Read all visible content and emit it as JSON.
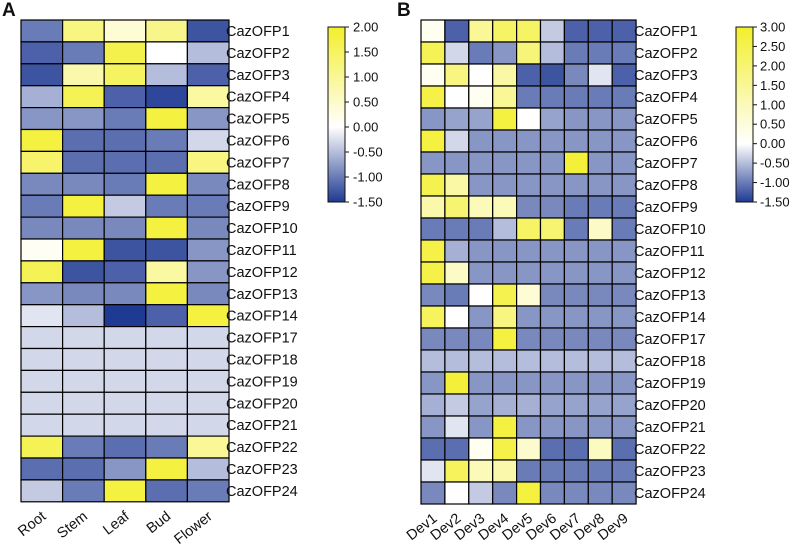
{
  "chart_data": [
    {
      "type": "heatmap",
      "panel_label": "A",
      "rows": [
        "CazOFP1",
        "CazOFP2",
        "CazOFP3",
        "CazOFP4",
        "CazOFP5",
        "CazOFP6",
        "CazOFP7",
        "CazOFP8",
        "CazOFP9",
        "CazOFP10",
        "CazOFP11",
        "CazOFP12",
        "CazOFP13",
        "CazOFP14",
        "CazOFP17",
        "CazOFP18",
        "CazOFP19",
        "CazOFP20",
        "CazOFP21",
        "CazOFP22",
        "CazOFP23",
        "CazOFP24"
      ],
      "columns": [
        "Root",
        "Stem",
        "Leaf",
        "Bud",
        "Flower"
      ],
      "values": [
        [
          -1.0,
          1.2,
          0.4,
          1.1,
          -1.3
        ],
        [
          -1.2,
          -1.0,
          1.7,
          0.0,
          -0.5
        ],
        [
          -1.3,
          0.8,
          1.5,
          -0.5,
          -1.2
        ],
        [
          -0.6,
          1.6,
          -1.2,
          -1.4,
          0.9
        ],
        [
          -0.8,
          -0.8,
          -1.0,
          1.8,
          -0.8
        ],
        [
          1.8,
          -1.1,
          -1.1,
          -1.0,
          -0.3
        ],
        [
          1.4,
          -1.1,
          -1.1,
          -1.1,
          1.2
        ],
        [
          -0.9,
          -0.9,
          -1.0,
          1.8,
          -0.9
        ],
        [
          -1.0,
          1.8,
          -0.4,
          -1.0,
          -1.0
        ],
        [
          -0.9,
          -0.9,
          -0.9,
          1.8,
          -0.9
        ],
        [
          0.1,
          1.8,
          -1.3,
          -1.3,
          -0.8
        ],
        [
          1.6,
          -1.3,
          -1.2,
          0.9,
          -0.8
        ],
        [
          -0.8,
          -0.9,
          -0.9,
          1.8,
          -0.9
        ],
        [
          -0.2,
          -0.5,
          -1.5,
          -1.2,
          1.8
        ],
        [
          -0.3,
          -0.3,
          -0.3,
          -0.3,
          -0.3
        ],
        [
          -0.3,
          -0.3,
          -0.3,
          -0.3,
          -0.3
        ],
        [
          -0.3,
          -0.3,
          -0.3,
          -0.3,
          -0.3
        ],
        [
          -0.3,
          -0.3,
          -0.3,
          -0.3,
          -0.3
        ],
        [
          -0.3,
          -0.3,
          -0.3,
          -0.3,
          -0.3
        ],
        [
          1.6,
          -1.0,
          -1.1,
          -1.0,
          1.0
        ],
        [
          -1.1,
          -1.1,
          -0.8,
          1.8,
          -0.5
        ],
        [
          -0.4,
          -1.0,
          1.8,
          -1.1,
          -1.0
        ]
      ],
      "colorbar": {
        "min": -1.5,
        "max": 2.0,
        "ticks": [
          "2.00",
          "1.50",
          "1.00",
          "0.50",
          "0.00",
          "-0.50",
          "-1.00",
          "-1.50"
        ]
      },
      "colors": {
        "low": "#1f3a93",
        "mid": "#ffffff",
        "high": "#f3ef2c"
      }
    },
    {
      "type": "heatmap",
      "panel_label": "B",
      "rows": [
        "CazOFP1",
        "CazOFP2",
        "CazOFP3",
        "CazOFP4",
        "CazOFP5",
        "CazOFP6",
        "CazOFP7",
        "CazOFP8",
        "CazOFP9",
        "CazOFP10",
        "CazOFP11",
        "CazOFP12",
        "CazOFP13",
        "CazOFP14",
        "CazOFP17",
        "CazOFP18",
        "CazOFP19",
        "CazOFP20",
        "CazOFP21",
        "CazOFP22",
        "CazOFP23",
        "CazOFP24"
      ],
      "columns": [
        "Dev1",
        "Dev2",
        "Dev3",
        "Dev4",
        "Dev5",
        "Dev6",
        "Dev7",
        "Dev8",
        "Dev9"
      ],
      "values": [
        [
          0.2,
          -1.2,
          1.5,
          2.2,
          2.2,
          -0.4,
          -1.2,
          -1.2,
          -1.2
        ],
        [
          2.4,
          -0.3,
          -1.0,
          -0.8,
          1.9,
          -0.5,
          -1.0,
          -1.0,
          -1.0
        ],
        [
          0.2,
          1.8,
          0.0,
          1.3,
          -1.2,
          -1.3,
          -0.9,
          -0.2,
          -1.2
        ],
        [
          2.6,
          0.0,
          0.2,
          1.5,
          -1.0,
          -1.0,
          -1.0,
          -1.0,
          -1.0
        ],
        [
          -0.8,
          -0.7,
          -0.7,
          2.7,
          0.0,
          -0.7,
          -0.8,
          -0.8,
          -0.8
        ],
        [
          2.7,
          -0.3,
          -0.8,
          -0.8,
          -0.8,
          -0.8,
          -0.8,
          -0.8,
          -0.8
        ],
        [
          -0.8,
          -0.8,
          -0.8,
          -0.8,
          -0.8,
          -0.8,
          2.8,
          -0.8,
          -0.8
        ],
        [
          2.5,
          1.3,
          -0.8,
          -0.8,
          -0.8,
          -0.8,
          -0.8,
          -0.8,
          -0.8
        ],
        [
          1.2,
          2.0,
          1.0,
          1.0,
          -0.9,
          -0.9,
          -1.0,
          -1.0,
          -1.0
        ],
        [
          -1.0,
          -1.0,
          -1.0,
          -0.5,
          2.2,
          2.0,
          -1.0,
          0.8,
          -1.0
        ],
        [
          2.6,
          -0.6,
          -0.8,
          -0.8,
          -0.8,
          -0.8,
          -0.8,
          -0.8,
          -0.8
        ],
        [
          2.6,
          0.8,
          -0.8,
          -0.8,
          -0.8,
          -0.8,
          -0.8,
          -0.8,
          -0.8
        ],
        [
          -0.9,
          -1.0,
          0.0,
          2.5,
          0.6,
          -0.9,
          -0.9,
          -0.9,
          -0.9
        ],
        [
          2.3,
          0.0,
          -0.8,
          1.8,
          -0.8,
          -0.8,
          -0.8,
          -0.8,
          -0.8
        ],
        [
          -0.9,
          -0.9,
          -0.9,
          2.7,
          -0.9,
          -0.9,
          -0.9,
          -0.9,
          -0.9
        ],
        [
          -0.5,
          -0.5,
          -0.5,
          -0.5,
          -0.5,
          -0.5,
          -0.5,
          -0.5,
          -0.5
        ],
        [
          -0.8,
          2.8,
          -0.8,
          -0.8,
          -0.8,
          -0.8,
          -0.8,
          -0.8,
          -0.8
        ],
        [
          -0.6,
          -0.4,
          -0.7,
          -0.6,
          -0.6,
          -0.7,
          -0.7,
          -0.7,
          -0.7
        ],
        [
          -0.8,
          -0.2,
          -0.8,
          2.7,
          -0.8,
          -0.8,
          -0.8,
          -0.8,
          -0.8
        ],
        [
          -1.1,
          -1.1,
          0.2,
          2.6,
          0.7,
          -1.1,
          -1.1,
          0.9,
          -1.1
        ],
        [
          -0.2,
          2.3,
          1.0,
          1.2,
          -1.0,
          -1.0,
          -1.0,
          -1.0,
          -1.0
        ],
        [
          -0.9,
          0.0,
          -0.4,
          -0.9,
          2.7,
          -0.9,
          -0.9,
          -0.9,
          -0.9
        ]
      ],
      "colorbar": {
        "min": -1.5,
        "max": 3.0,
        "ticks": [
          "3.00",
          "2.50",
          "2.00",
          "1.50",
          "1.00",
          "0.50",
          "0.00",
          "-0.50",
          "-1.00",
          "-1.50"
        ]
      },
      "colors": {
        "low": "#1f3a93",
        "mid": "#ffffff",
        "high": "#f3ef2c"
      }
    }
  ]
}
